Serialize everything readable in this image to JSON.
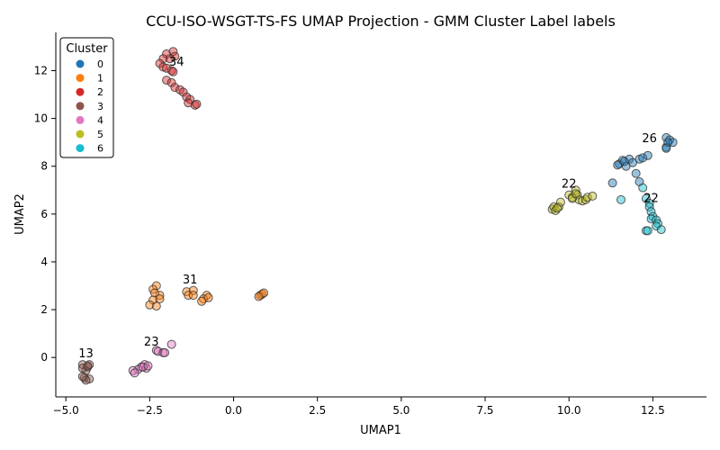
{
  "chart_data": {
    "type": "scatter",
    "title": "CCU-ISO-WSGT-TS-FS UMAP Projection - GMM Cluster Label labels",
    "xlabel": "UMAP1",
    "ylabel": "UMAP2",
    "xlim": [
      -5.3,
      14.1
    ],
    "ylim": [
      -1.65,
      13.6
    ],
    "x_ticks": [
      -5.0,
      -2.5,
      0.0,
      2.5,
      5.0,
      7.5,
      10.0,
      12.5
    ],
    "x_tick_labels": [
      "−5.0",
      "−2.5",
      "0.0",
      "2.5",
      "5.0",
      "7.5",
      "10.0",
      "12.5"
    ],
    "y_ticks": [
      0,
      2,
      4,
      6,
      8,
      10,
      12
    ],
    "y_tick_labels": [
      "0",
      "2",
      "4",
      "6",
      "8",
      "10",
      "12"
    ],
    "grid": false,
    "legend": {
      "title": "Cluster",
      "placement": "top-left"
    },
    "series": [
      {
        "name": "0",
        "color": "#1f77b4",
        "points": [
          [
            11.5,
            8.1
          ],
          [
            11.6,
            8.25
          ],
          [
            11.7,
            8.0
          ],
          [
            11.8,
            8.3
          ],
          [
            11.45,
            8.05
          ],
          [
            11.65,
            8.2
          ],
          [
            11.9,
            8.15
          ],
          [
            12.0,
            7.7
          ],
          [
            12.1,
            8.3
          ],
          [
            12.2,
            8.35
          ],
          [
            12.35,
            8.45
          ],
          [
            12.1,
            7.35
          ],
          [
            11.3,
            7.3
          ],
          [
            12.9,
            9.2
          ],
          [
            13.0,
            9.1
          ],
          [
            12.9,
            8.8
          ],
          [
            13.1,
            9.0
          ],
          [
            12.95,
            9.0
          ],
          [
            12.9,
            8.75
          ]
        ]
      },
      {
        "name": "1",
        "color": "#ff7f0e",
        "points": [
          [
            -2.3,
            3.0
          ],
          [
            -2.4,
            2.85
          ],
          [
            -2.2,
            2.6
          ],
          [
            -2.35,
            2.7
          ],
          [
            -2.4,
            2.4
          ],
          [
            -2.2,
            2.45
          ],
          [
            -2.5,
            2.2
          ],
          [
            -2.3,
            2.15
          ],
          [
            -1.4,
            2.75
          ],
          [
            -1.2,
            2.8
          ],
          [
            -1.35,
            2.6
          ],
          [
            -1.2,
            2.6
          ],
          [
            -0.8,
            2.6
          ],
          [
            -0.9,
            2.45
          ],
          [
            -0.75,
            2.5
          ],
          [
            -0.95,
            2.35
          ],
          [
            0.8,
            2.6
          ],
          [
            0.85,
            2.65
          ],
          [
            0.9,
            2.7
          ],
          [
            0.75,
            2.55
          ]
        ]
      },
      {
        "name": "2",
        "color": "#d62728",
        "points": [
          [
            -1.8,
            12.8
          ],
          [
            -1.75,
            12.6
          ],
          [
            -1.9,
            12.5
          ],
          [
            -2.0,
            12.7
          ],
          [
            -2.1,
            12.5
          ],
          [
            -2.2,
            12.3
          ],
          [
            -2.1,
            12.15
          ],
          [
            -2.0,
            12.1
          ],
          [
            -1.85,
            12.0
          ],
          [
            -1.8,
            11.95
          ],
          [
            -2.0,
            11.6
          ],
          [
            -1.85,
            11.5
          ],
          [
            -1.75,
            11.3
          ],
          [
            -1.6,
            11.2
          ],
          [
            -1.5,
            11.1
          ],
          [
            -1.4,
            10.9
          ],
          [
            -1.3,
            10.8
          ],
          [
            -1.35,
            10.65
          ],
          [
            -1.15,
            10.55
          ],
          [
            -1.1,
            10.6
          ]
        ]
      },
      {
        "name": "3",
        "color": "#8c564b",
        "points": [
          [
            -4.5,
            -0.3
          ],
          [
            -4.35,
            -0.4
          ],
          [
            -4.4,
            -0.55
          ],
          [
            -4.5,
            -0.45
          ],
          [
            -4.3,
            -0.3
          ],
          [
            -4.45,
            -0.85
          ],
          [
            -4.3,
            -0.9
          ],
          [
            -4.4,
            -0.95
          ],
          [
            -4.5,
            -0.8
          ],
          [
            -4.35,
            -0.35
          ]
        ]
      },
      {
        "name": "4",
        "color": "#e377c2",
        "points": [
          [
            -2.3,
            0.3
          ],
          [
            -2.25,
            0.25
          ],
          [
            -2.1,
            0.2
          ],
          [
            -2.05,
            0.2
          ],
          [
            -1.85,
            0.55
          ],
          [
            -2.65,
            -0.3
          ],
          [
            -2.6,
            -0.45
          ],
          [
            -2.75,
            -0.4
          ],
          [
            -2.85,
            -0.5
          ],
          [
            -3.0,
            -0.55
          ],
          [
            -2.95,
            -0.65
          ],
          [
            -2.7,
            -0.4
          ],
          [
            -2.55,
            -0.35
          ]
        ]
      },
      {
        "name": "5",
        "color": "#bcbd22",
        "points": [
          [
            9.5,
            6.2
          ],
          [
            9.55,
            6.3
          ],
          [
            9.6,
            6.15
          ],
          [
            9.7,
            6.3
          ],
          [
            9.75,
            6.5
          ],
          [
            9.65,
            6.25
          ],
          [
            10.0,
            6.8
          ],
          [
            10.1,
            6.7
          ],
          [
            10.2,
            7.0
          ],
          [
            10.25,
            6.8
          ],
          [
            10.3,
            6.6
          ],
          [
            10.4,
            6.55
          ],
          [
            10.5,
            6.6
          ],
          [
            10.55,
            6.7
          ],
          [
            10.7,
            6.75
          ],
          [
            10.1,
            6.65
          ],
          [
            10.2,
            6.85
          ]
        ]
      },
      {
        "name": "6",
        "color": "#17becf",
        "points": [
          [
            12.2,
            7.1
          ],
          [
            12.3,
            6.65
          ],
          [
            12.4,
            6.45
          ],
          [
            12.4,
            6.3
          ],
          [
            12.45,
            6.1
          ],
          [
            12.5,
            5.9
          ],
          [
            12.45,
            5.8
          ],
          [
            12.6,
            5.75
          ],
          [
            12.65,
            5.6
          ],
          [
            12.6,
            5.5
          ],
          [
            12.3,
            5.3
          ],
          [
            12.35,
            5.3
          ],
          [
            12.75,
            5.35
          ],
          [
            11.55,
            6.6
          ]
        ]
      }
    ],
    "annotations": [
      {
        "text": "34",
        "x": -1.7,
        "y": 12.2
      },
      {
        "text": "26",
        "x": 12.4,
        "y": 9.0
      },
      {
        "text": "22",
        "x": 10.0,
        "y": 7.1
      },
      {
        "text": "22",
        "x": 12.45,
        "y": 6.5
      },
      {
        "text": "31",
        "x": -1.3,
        "y": 3.1
      },
      {
        "text": "23",
        "x": -2.45,
        "y": 0.5
      },
      {
        "text": "13",
        "x": -4.4,
        "y": 0.0
      }
    ]
  }
}
